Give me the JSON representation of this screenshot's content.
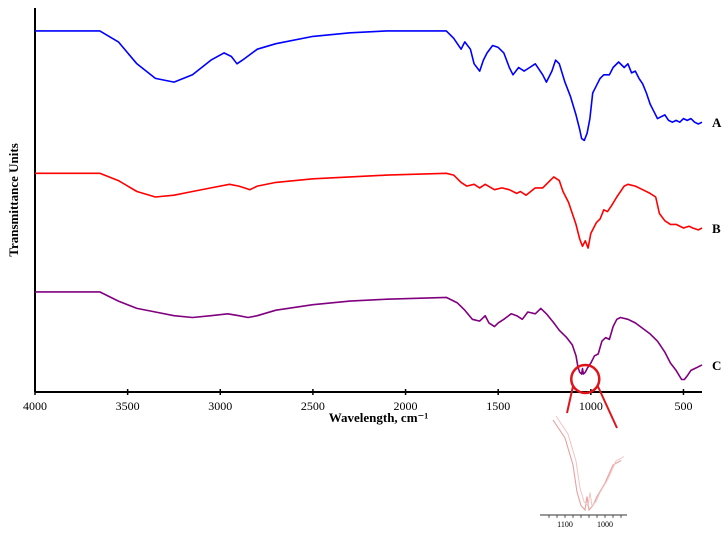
{
  "chart_data": {
    "type": "line",
    "title": "",
    "xlabel": "Wavelength, cm⁻¹",
    "ylabel": "Transmittance Units",
    "xlim": [
      4000,
      400
    ],
    "x_reversed": true,
    "x_ticks": [
      4000,
      3500,
      3000,
      2500,
      2000,
      1500,
      1000,
      500
    ],
    "y_ticks_shown": false,
    "grid": false,
    "legend": "none",
    "series": [
      {
        "name": "A",
        "color": "#0000ff",
        "points": [
          [
            4000,
            0.03
          ],
          [
            3650,
            0.03
          ],
          [
            3550,
            0.06
          ],
          [
            3450,
            0.12
          ],
          [
            3350,
            0.16
          ],
          [
            3250,
            0.17
          ],
          [
            3150,
            0.15
          ],
          [
            3050,
            0.11
          ],
          [
            2980,
            0.09
          ],
          [
            2940,
            0.1
          ],
          [
            2910,
            0.12
          ],
          [
            2880,
            0.11
          ],
          [
            2800,
            0.08
          ],
          [
            2700,
            0.065
          ],
          [
            2500,
            0.045
          ],
          [
            2300,
            0.035
          ],
          [
            2100,
            0.03
          ],
          [
            1780,
            0.03
          ],
          [
            1740,
            0.05
          ],
          [
            1700,
            0.08
          ],
          [
            1680,
            0.06
          ],
          [
            1650,
            0.08
          ],
          [
            1630,
            0.12
          ],
          [
            1600,
            0.14
          ],
          [
            1580,
            0.11
          ],
          [
            1560,
            0.09
          ],
          [
            1530,
            0.07
          ],
          [
            1500,
            0.075
          ],
          [
            1470,
            0.09
          ],
          [
            1440,
            0.13
          ],
          [
            1420,
            0.15
          ],
          [
            1390,
            0.13
          ],
          [
            1360,
            0.14
          ],
          [
            1330,
            0.13
          ],
          [
            1300,
            0.12
          ],
          [
            1260,
            0.15
          ],
          [
            1240,
            0.17
          ],
          [
            1210,
            0.14
          ],
          [
            1190,
            0.11
          ],
          [
            1170,
            0.12
          ],
          [
            1140,
            0.17
          ],
          [
            1110,
            0.21
          ],
          [
            1080,
            0.26
          ],
          [
            1060,
            0.3
          ],
          [
            1050,
            0.325
          ],
          [
            1035,
            0.33
          ],
          [
            1020,
            0.31
          ],
          [
            1005,
            0.27
          ],
          [
            990,
            0.2
          ],
          [
            970,
            0.18
          ],
          [
            950,
            0.16
          ],
          [
            930,
            0.15
          ],
          [
            900,
            0.15
          ],
          [
            880,
            0.13
          ],
          [
            850,
            0.115
          ],
          [
            820,
            0.13
          ],
          [
            800,
            0.12
          ],
          [
            780,
            0.145
          ],
          [
            760,
            0.14
          ],
          [
            740,
            0.16
          ],
          [
            720,
            0.175
          ],
          [
            700,
            0.2
          ],
          [
            680,
            0.23
          ],
          [
            660,
            0.25
          ],
          [
            640,
            0.27
          ],
          [
            620,
            0.265
          ],
          [
            600,
            0.26
          ],
          [
            580,
            0.275
          ],
          [
            560,
            0.28
          ],
          [
            540,
            0.275
          ],
          [
            520,
            0.28
          ],
          [
            500,
            0.27
          ],
          [
            480,
            0.275
          ],
          [
            460,
            0.27
          ],
          [
            440,
            0.28
          ],
          [
            420,
            0.285
          ],
          [
            400,
            0.28
          ]
        ]
      },
      {
        "name": "B",
        "color": "#ff0000",
        "points": [
          [
            4000,
            0.42
          ],
          [
            3650,
            0.42
          ],
          [
            3550,
            0.44
          ],
          [
            3450,
            0.47
          ],
          [
            3350,
            0.485
          ],
          [
            3250,
            0.48
          ],
          [
            3150,
            0.47
          ],
          [
            3050,
            0.46
          ],
          [
            2950,
            0.45
          ],
          [
            2900,
            0.455
          ],
          [
            2870,
            0.46
          ],
          [
            2840,
            0.465
          ],
          [
            2800,
            0.455
          ],
          [
            2700,
            0.445
          ],
          [
            2500,
            0.435
          ],
          [
            2300,
            0.43
          ],
          [
            2100,
            0.425
          ],
          [
            1780,
            0.42
          ],
          [
            1740,
            0.425
          ],
          [
            1700,
            0.445
          ],
          [
            1670,
            0.455
          ],
          [
            1630,
            0.45
          ],
          [
            1600,
            0.46
          ],
          [
            1570,
            0.45
          ],
          [
            1520,
            0.465
          ],
          [
            1480,
            0.46
          ],
          [
            1440,
            0.465
          ],
          [
            1400,
            0.475
          ],
          [
            1380,
            0.47
          ],
          [
            1350,
            0.48
          ],
          [
            1300,
            0.46
          ],
          [
            1260,
            0.46
          ],
          [
            1230,
            0.445
          ],
          [
            1200,
            0.43
          ],
          [
            1170,
            0.44
          ],
          [
            1150,
            0.47
          ],
          [
            1120,
            0.5
          ],
          [
            1100,
            0.53
          ],
          [
            1080,
            0.56
          ],
          [
            1060,
            0.6
          ],
          [
            1045,
            0.62
          ],
          [
            1030,
            0.605
          ],
          [
            1015,
            0.625
          ],
          [
            1000,
            0.585
          ],
          [
            985,
            0.57
          ],
          [
            970,
            0.555
          ],
          [
            950,
            0.545
          ],
          [
            930,
            0.52
          ],
          [
            910,
            0.525
          ],
          [
            890,
            0.51
          ],
          [
            860,
            0.485
          ],
          [
            820,
            0.455
          ],
          [
            800,
            0.45
          ],
          [
            760,
            0.455
          ],
          [
            720,
            0.465
          ],
          [
            680,
            0.475
          ],
          [
            650,
            0.485
          ],
          [
            630,
            0.53
          ],
          [
            600,
            0.55
          ],
          [
            570,
            0.56
          ],
          [
            540,
            0.56
          ],
          [
            500,
            0.57
          ],
          [
            470,
            0.565
          ],
          [
            450,
            0.57
          ],
          [
            420,
            0.575
          ],
          [
            400,
            0.57
          ]
        ]
      },
      {
        "name": "C",
        "color": "#800080",
        "points": [
          [
            4000,
            0.745
          ],
          [
            3650,
            0.745
          ],
          [
            3550,
            0.77
          ],
          [
            3450,
            0.79
          ],
          [
            3350,
            0.8
          ],
          [
            3250,
            0.81
          ],
          [
            3150,
            0.815
          ],
          [
            3050,
            0.81
          ],
          [
            2960,
            0.805
          ],
          [
            2900,
            0.81
          ],
          [
            2850,
            0.815
          ],
          [
            2800,
            0.81
          ],
          [
            2700,
            0.795
          ],
          [
            2500,
            0.78
          ],
          [
            2300,
            0.77
          ],
          [
            2100,
            0.765
          ],
          [
            1780,
            0.76
          ],
          [
            1720,
            0.775
          ],
          [
            1680,
            0.795
          ],
          [
            1640,
            0.82
          ],
          [
            1600,
            0.825
          ],
          [
            1570,
            0.81
          ],
          [
            1550,
            0.83
          ],
          [
            1520,
            0.84
          ],
          [
            1500,
            0.83
          ],
          [
            1470,
            0.82
          ],
          [
            1430,
            0.805
          ],
          [
            1400,
            0.81
          ],
          [
            1370,
            0.82
          ],
          [
            1340,
            0.8
          ],
          [
            1300,
            0.805
          ],
          [
            1270,
            0.79
          ],
          [
            1240,
            0.805
          ],
          [
            1200,
            0.83
          ],
          [
            1170,
            0.85
          ],
          [
            1130,
            0.87
          ],
          [
            1100,
            0.89
          ],
          [
            1080,
            0.92
          ],
          [
            1070,
            0.95
          ],
          [
            1060,
            0.965
          ],
          [
            1050,
            0.97
          ],
          [
            1045,
            0.955
          ],
          [
            1040,
            0.97
          ],
          [
            1030,
            0.965
          ],
          [
            1020,
            0.955
          ],
          [
            1000,
            0.94
          ],
          [
            980,
            0.92
          ],
          [
            960,
            0.915
          ],
          [
            940,
            0.88
          ],
          [
            920,
            0.87
          ],
          [
            900,
            0.875
          ],
          [
            880,
            0.84
          ],
          [
            860,
            0.82
          ],
          [
            840,
            0.815
          ],
          [
            800,
            0.82
          ],
          [
            760,
            0.83
          ],
          [
            720,
            0.845
          ],
          [
            680,
            0.86
          ],
          [
            640,
            0.88
          ],
          [
            600,
            0.91
          ],
          [
            570,
            0.94
          ],
          [
            540,
            0.96
          ],
          [
            510,
            0.985
          ],
          [
            495,
            0.985
          ],
          [
            480,
            0.975
          ],
          [
            460,
            0.96
          ],
          [
            440,
            0.955
          ],
          [
            420,
            0.95
          ],
          [
            400,
            0.945
          ]
        ]
      }
    ],
    "annotations": [
      {
        "type": "circle-highlight",
        "center_x": 1030,
        "series": "C"
      },
      {
        "type": "inset",
        "series": "C",
        "x_range": [
          1150,
          950
        ],
        "ticks": [
          1100,
          1000
        ]
      }
    ]
  }
}
